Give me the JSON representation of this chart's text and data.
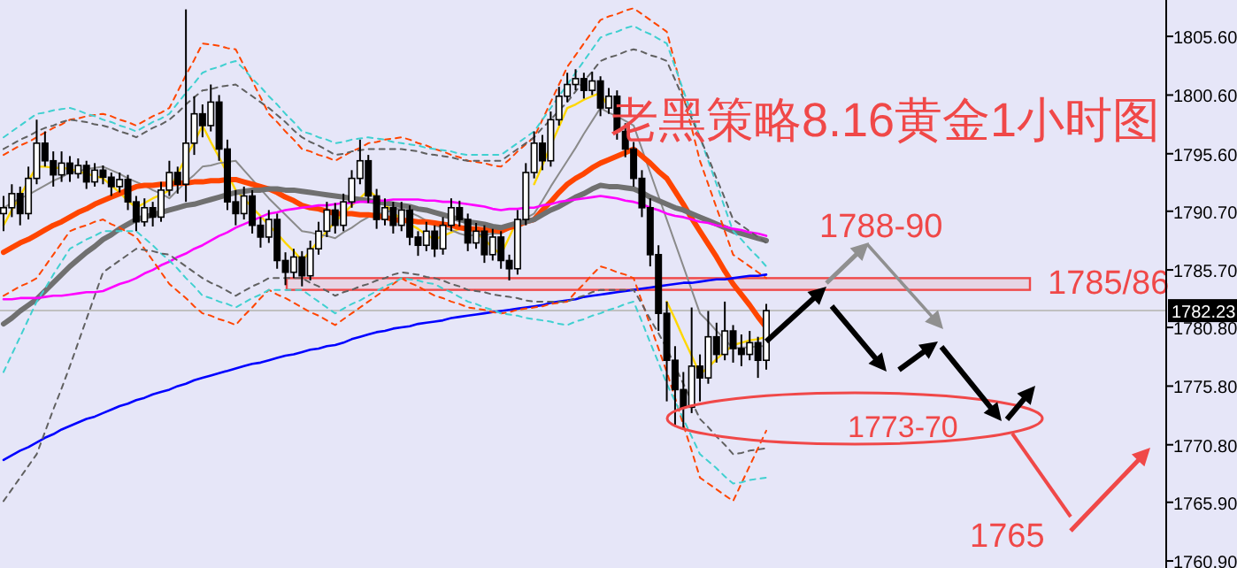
{
  "chart_data": {
    "type": "candlestick",
    "title": "老黑策略8.16黄金1小时图",
    "categories": [
      null,
      null,
      null,
      null,
      null,
      null,
      null,
      null,
      null,
      null,
      null,
      null,
      null,
      null,
      null,
      null,
      null,
      null,
      null,
      null,
      null,
      null,
      null,
      null,
      null,
      null,
      null,
      null,
      null,
      null,
      null,
      null,
      null,
      null,
      null,
      null,
      null,
      null,
      null,
      null,
      null,
      null,
      null,
      null,
      null,
      null,
      null,
      null,
      null,
      null,
      null,
      null,
      null,
      null,
      null,
      null,
      null,
      null,
      null,
      null,
      null,
      null,
      null,
      null,
      null,
      null,
      null,
      null,
      null,
      null,
      null,
      null,
      null,
      null,
      null,
      null,
      null,
      null,
      null,
      null,
      null,
      null,
      null,
      null,
      null,
      null,
      null,
      null,
      null,
      null,
      null,
      null,
      null
    ],
    "ohlc": [
      [
        1790.5,
        1792.0,
        1789.0,
        1791.0
      ],
      [
        1791.0,
        1793.0,
        1790.2,
        1792.2
      ],
      [
        1792.2,
        1792.8,
        1789.5,
        1790.5
      ],
      [
        1790.5,
        1794.5,
        1790.0,
        1793.5
      ],
      [
        1793.5,
        1798.5,
        1793.0,
        1796.5
      ],
      [
        1796.5,
        1797.5,
        1794.5,
        1795.0
      ],
      [
        1795.0,
        1795.8,
        1792.8,
        1793.8
      ],
      [
        1793.8,
        1795.8,
        1793.2,
        1794.8
      ],
      [
        1794.8,
        1795.4,
        1793.2,
        1793.9
      ],
      [
        1793.9,
        1795.2,
        1793.5,
        1794.6
      ],
      [
        1794.6,
        1795.0,
        1792.6,
        1793.2
      ],
      [
        1793.2,
        1794.8,
        1792.8,
        1794.2
      ],
      [
        1794.2,
        1794.6,
        1793.0,
        1793.6
      ],
      [
        1793.6,
        1794.0,
        1792.0,
        1792.8
      ],
      [
        1792.8,
        1794.0,
        1792.3,
        1793.4
      ],
      [
        1793.4,
        1793.8,
        1790.8,
        1791.5
      ],
      [
        1791.5,
        1792.0,
        1789.0,
        1789.8
      ],
      [
        1789.8,
        1791.8,
        1789.4,
        1791.0
      ],
      [
        1791.0,
        1791.5,
        1789.4,
        1790.2
      ],
      [
        1790.2,
        1793.2,
        1789.8,
        1792.5
      ],
      [
        1792.5,
        1795.0,
        1792.0,
        1794.0
      ],
      [
        1794.0,
        1794.5,
        1792.2,
        1793.0
      ],
      [
        1793.0,
        1807.9,
        1791.5,
        1796.5
      ],
      [
        1796.5,
        1800.5,
        1795.5,
        1799.0
      ],
      [
        1799.0,
        1799.8,
        1797.0,
        1798.0
      ],
      [
        1798.0,
        1801.5,
        1797.5,
        1800.0
      ],
      [
        1800.0,
        1800.6,
        1795.0,
        1796.0
      ],
      [
        1796.0,
        1796.8,
        1790.8,
        1791.5
      ],
      [
        1791.5,
        1792.5,
        1789.5,
        1790.5
      ],
      [
        1790.5,
        1792.8,
        1790.0,
        1792.0
      ],
      [
        1792.0,
        1792.5,
        1788.8,
        1789.5
      ],
      [
        1789.5,
        1790.2,
        1787.6,
        1788.5
      ],
      [
        1788.5,
        1790.8,
        1788.0,
        1790.0
      ],
      [
        1790.0,
        1790.5,
        1785.8,
        1786.5
      ],
      [
        1786.5,
        1787.2,
        1784.4,
        1785.5
      ],
      [
        1785.5,
        1787.5,
        1785.0,
        1786.8
      ],
      [
        1786.8,
        1787.3,
        1784.3,
        1785.2
      ],
      [
        1785.2,
        1788.2,
        1784.8,
        1787.5
      ],
      [
        1787.5,
        1789.8,
        1787.0,
        1789.0
      ],
      [
        1789.0,
        1791.5,
        1788.5,
        1790.8
      ],
      [
        1790.8,
        1791.4,
        1788.8,
        1789.5
      ],
      [
        1789.5,
        1792.2,
        1789.0,
        1791.5
      ],
      [
        1791.5,
        1794.2,
        1791.0,
        1793.5
      ],
      [
        1793.5,
        1796.8,
        1793.0,
        1795.0
      ],
      [
        1795.0,
        1795.5,
        1791.4,
        1792.0
      ],
      [
        1792.0,
        1792.6,
        1789.2,
        1790.0
      ],
      [
        1790.0,
        1791.8,
        1789.5,
        1791.0
      ],
      [
        1791.0,
        1791.5,
        1788.8,
        1789.5
      ],
      [
        1789.5,
        1791.5,
        1789.0,
        1790.8
      ],
      [
        1790.8,
        1791.2,
        1787.8,
        1788.5
      ],
      [
        1788.5,
        1789.0,
        1786.9,
        1787.8
      ],
      [
        1787.8,
        1789.8,
        1787.3,
        1789.0
      ],
      [
        1789.0,
        1789.5,
        1786.8,
        1787.5
      ],
      [
        1787.5,
        1790.2,
        1787.0,
        1789.5
      ],
      [
        1789.5,
        1791.8,
        1789.0,
        1791.0
      ],
      [
        1791.0,
        1791.6,
        1789.4,
        1790.0
      ],
      [
        1790.0,
        1790.5,
        1787.3,
        1788.0
      ],
      [
        1788.0,
        1789.7,
        1787.5,
        1789.0
      ],
      [
        1789.0,
        1789.5,
        1786.3,
        1787.0
      ],
      [
        1787.0,
        1789.2,
        1786.5,
        1788.5
      ],
      [
        1788.5,
        1789.0,
        1785.8,
        1786.5
      ],
      [
        1786.5,
        1787.0,
        1784.8,
        1785.8
      ],
      [
        1785.8,
        1790.8,
        1785.3,
        1790.0
      ],
      [
        1790.0,
        1794.8,
        1789.5,
        1794.0
      ],
      [
        1794.0,
        1797.5,
        1793.5,
        1796.5
      ],
      [
        1796.5,
        1797.2,
        1794.2,
        1795.0
      ],
      [
        1795.0,
        1799.2,
        1794.5,
        1798.5
      ],
      [
        1798.5,
        1801.3,
        1798.0,
        1800.5
      ],
      [
        1800.5,
        1802.5,
        1800.0,
        1801.5
      ],
      [
        1801.5,
        1802.8,
        1801.0,
        1802.0
      ],
      [
        1802.0,
        1802.5,
        1800.3,
        1801.0
      ],
      [
        1801.0,
        1802.6,
        1800.6,
        1801.8
      ],
      [
        1801.8,
        1802.2,
        1798.8,
        1799.5
      ],
      [
        1799.5,
        1801.2,
        1799.0,
        1800.5
      ],
      [
        1800.5,
        1801.0,
        1796.8,
        1797.5
      ],
      [
        1797.5,
        1798.2,
        1795.3,
        1796.0
      ],
      [
        1796.0,
        1796.6,
        1792.8,
        1793.5
      ],
      [
        1793.5,
        1794.2,
        1790.2,
        1791.0
      ],
      [
        1791.0,
        1791.8,
        1786.0,
        1787.0
      ],
      [
        1787.0,
        1787.8,
        1780.5,
        1782.0
      ],
      [
        1782.0,
        1783.0,
        1774.5,
        1778.0
      ],
      [
        1778.0,
        1779.2,
        1772.5,
        1775.5
      ],
      [
        1775.5,
        1777.0,
        1772.2,
        1774.0
      ],
      [
        1774.0,
        1782.5,
        1773.5,
        1777.5
      ],
      [
        1777.5,
        1778.5,
        1774.5,
        1776.5
      ],
      [
        1776.5,
        1782.2,
        1776.0,
        1780.0
      ],
      [
        1780.0,
        1781.2,
        1777.8,
        1778.5
      ],
      [
        1778.5,
        1783.0,
        1778.0,
        1780.5
      ],
      [
        1780.5,
        1781.0,
        1777.8,
        1779.0
      ],
      [
        1779.0,
        1780.2,
        1777.5,
        1778.5
      ],
      [
        1778.5,
        1780.5,
        1778.0,
        1779.5
      ],
      [
        1779.5,
        1780.0,
        1776.5,
        1778.0
      ],
      [
        1778.0,
        1782.8,
        1777.2,
        1782.23
      ]
    ],
    "series": [
      {
        "type": "line",
        "color": "#ffd700",
        "values": [
          1789.5,
          1790.8,
          1792.0,
          1793.3,
          1794.5,
          1794.5,
          1794.4,
          1794.4,
          1794.3,
          1794.1,
          1793.9,
          1793.7,
          1793.5,
          1792.9,
          1792.3,
          1791.6,
          1791.0,
          1791.4,
          1791.8,
          1792.1,
          1792.5,
          1793.9,
          1795.3,
          1796.6,
          1798.0,
          1796.6,
          1795.3,
          1793.9,
          1792.5,
          1791.8,
          1791.0,
          1790.3,
          1789.5,
          1788.8,
          1788.0,
          1787.3,
          1786.5,
          1787.3,
          1788.2,
          1789.0,
          1789.8,
          1790.5,
          1791.2,
          1791.8,
          1792.5,
          1791.9,
          1791.3,
          1790.6,
          1790.0,
          1789.6,
          1789.2,
          1788.7,
          1788.3,
          1788.6,
          1788.9,
          1789.2,
          1789.5,
          1788.9,
          1788.3,
          1787.6,
          1787.0,
          1788.5,
          1790.0,
          null,
          1793.0,
          1794.6,
          1796.3,
          1797.9,
          1799.5,
          1799.8,
          1800.2,
          1800.5,
          1800.8,
          1799.5,
          null,
          null,
          null,
          null,
          null,
          null,
          1783.0,
          1781.5,
          1779.9,
          1778.4,
          1776.8,
          1777.4,
          1778.1,
          1778.7,
          1779.3,
          1779.5,
          1779.7,
          1779.8,
          1780.0
        ]
      },
      {
        "type": "line",
        "color": "#8a8a8a",
        "values": [
          1791.0,
          1791.4,
          1791.8,
          1792.1,
          1792.5,
          1792.9,
          1793.3,
          1793.6,
          1794.0,
          1794.1,
          1794.3,
          1794.4,
          1794.5,
          1794.2,
          1793.9,
          1793.5,
          1793.2,
          1792.9,
          1792.5,
          1792.2,
          1791.8,
          1792.5,
          1793.2,
          1793.8,
          1794.5,
          1794.6,
          1794.8,
          1794.9,
          1795.0,
          1794.2,
          1793.4,
          1792.6,
          1791.8,
          1791.1,
          1790.4,
          1789.7,
          1789.0,
          1788.9,
          1788.7,
          1788.6,
          1788.4,
          1788.9,
          1789.3,
          1789.8,
          1790.2,
          1790.4,
          1790.6,
          1790.8,
          1791.0,
          1790.6,
          1790.3,
          1789.9,
          1789.5,
          1789.3,
          1789.1,
          1788.8,
          1788.6,
          1788.7,
          1788.7,
          1788.8,
          1788.8,
          1789.2,
          1789.7,
          1790.1,
          1790.5,
          1791.6,
          1792.8,
          1793.9,
          1795.0,
          1796.1,
          1797.3,
          1798.4,
          1799.5,
          1799.1,
          1798.8,
          1798.4,
          1798.0,
          1796.0,
          1794.0,
          1792.0,
          1790.0,
          1788.0,
          1786.0,
          1784.0,
          1782.0,
          1781.3,
          1780.5,
          1779.8,
          1779.0,
          1779.1,
          1779.1,
          1779.2,
          1779.2
        ]
      },
      {
        "type": "line",
        "color": "#ff4500",
        "values": [
          1787.2,
          1787.6,
          1788.0,
          1788.3,
          1788.7,
          1789.1,
          1789.5,
          1789.8,
          1790.2,
          1790.6,
          1790.9,
          1791.3,
          1791.6,
          1791.9,
          1792.2,
          1792.5,
          1792.8,
          1792.9,
          1792.9,
          1793.0,
          1793.0,
          1793.1,
          1793.1,
          1793.2,
          1793.2,
          1793.3,
          1793.3,
          1793.4,
          1793.4,
          1793.2,
          1793.0,
          1792.8,
          1792.6,
          1792.3,
          1791.9,
          1791.6,
          1791.2,
          1791.0,
          1790.9,
          1790.7,
          1790.5,
          1790.5,
          1790.5,
          1790.4,
          1790.4,
          1790.3,
          1790.2,
          1790.0,
          1789.9,
          1789.9,
          1789.8,
          1789.8,
          1789.7,
          1789.6,
          1789.5,
          1789.3,
          1789.2,
          1789.2,
          1789.1,
          1789.1,
          1789.0,
          1789.3,
          1789.5,
          1789.8,
          1790.0,
          1790.8,
          1791.5,
          1792.3,
          1793.0,
          1793.5,
          1793.9,
          1794.4,
          1794.8,
          1795.1,
          1795.4,
          1795.7,
          1796.0,
          1795.4,
          1794.8,
          1794.1,
          1793.5,
          1792.4,
          1791.3,
          1790.1,
          1789.0,
          1787.9,
          1786.8,
          1785.6,
          1784.5,
          1783.6,
          1782.7,
          1781.7,
          1780.8
        ]
      },
      {
        "type": "line",
        "color": "#707070",
        "values": [
          1781.1,
          1781.6,
          1782.2,
          1782.7,
          1783.2,
          1783.9,
          1784.6,
          1785.3,
          1786.0,
          1786.6,
          1787.2,
          1787.7,
          1788.3,
          1788.7,
          1789.2,
          1789.6,
          1790.0,
          1790.2,
          1790.4,
          1790.6,
          1790.8,
          1791.0,
          1791.2,
          1791.3,
          1791.5,
          1791.7,
          1791.9,
          1792.1,
          1792.3,
          1792.4,
          1792.5,
          1792.5,
          1792.6,
          1792.6,
          1792.5,
          1792.5,
          1792.4,
          1792.3,
          1792.2,
          1792.1,
          1792.0,
          1791.9,
          1791.8,
          1791.7,
          1791.6,
          1791.5,
          1791.4,
          1791.3,
          1791.2,
          1791.1,
          1790.9,
          1790.8,
          1790.6,
          1790.4,
          1790.2,
          1790.0,
          1789.8,
          1789.7,
          1789.6,
          1789.4,
          1789.3,
          1789.5,
          1789.7,
          1789.8,
          1790.0,
          1790.4,
          1790.8,
          1791.1,
          1791.5,
          1791.9,
          1792.2,
          1792.6,
          1792.9,
          1792.8,
          1792.8,
          1792.7,
          1792.6,
          1792.3,
          1791.9,
          1791.6,
          1791.3,
          1791.0,
          1790.8,
          1790.5,
          1790.2,
          1789.9,
          1789.6,
          1789.3,
          1789.0,
          1788.8,
          1788.6,
          1788.4,
          1788.2
        ]
      },
      {
        "type": "line",
        "color": "#ff00ff",
        "values": [
          1783.2,
          1783.2,
          1783.3,
          1783.3,
          1783.3,
          1783.4,
          1783.5,
          1783.5,
          1783.6,
          1783.7,
          1783.8,
          1783.8,
          1783.9,
          1784.2,
          1784.5,
          1784.7,
          1785.0,
          1785.4,
          1785.7,
          1786.1,
          1786.4,
          1786.8,
          1787.1,
          1787.5,
          1787.8,
          1788.2,
          1788.6,
          1788.9,
          1789.3,
          1789.6,
          1789.9,
          1790.2,
          1790.5,
          1790.6,
          1790.8,
          1790.9,
          1791.0,
          1791.1,
          1791.2,
          1791.2,
          1791.3,
          1791.4,
          1791.4,
          1791.5,
          1791.5,
          1791.6,
          1791.6,
          1791.7,
          1791.7,
          1791.7,
          1791.7,
          1791.6,
          1791.6,
          1791.5,
          1791.5,
          1791.4,
          1791.3,
          1791.2,
          1791.1,
          1790.9,
          1790.8,
          1790.9,
          1790.9,
          1791.0,
          1791.0,
          1791.2,
          1791.3,
          1791.5,
          1791.6,
          1791.7,
          1791.8,
          1791.9,
          1792.0,
          1791.9,
          1791.8,
          1791.6,
          1791.5,
          1791.3,
          1791.0,
          1790.8,
          1790.5,
          1790.3,
          1790.2,
          1790.0,
          1789.8,
          1789.7,
          1789.5,
          1789.4,
          1789.2,
          1789.1,
          1788.9,
          1788.8,
          1788.6
        ]
      },
      {
        "type": "line",
        "color": "#0000ff",
        "values": [
          1769.5,
          1769.9,
          1770.3,
          1770.6,
          1771.0,
          1771.4,
          1771.7,
          1772.1,
          1772.4,
          1772.7,
          1773.0,
          1773.2,
          1773.5,
          1773.8,
          1774.1,
          1774.3,
          1774.6,
          1774.8,
          1775.1,
          1775.3,
          1775.5,
          1775.8,
          1776.0,
          1776.3,
          1776.5,
          1776.7,
          1776.9,
          1777.1,
          1777.3,
          1777.5,
          1777.7,
          1777.8,
          1778.0,
          1778.2,
          1778.4,
          1778.5,
          1778.7,
          1778.9,
          1779.0,
          1779.2,
          1779.3,
          1779.5,
          1779.8,
          1780.0,
          1780.2,
          1780.4,
          1780.5,
          1780.7,
          1780.8,
          1780.9,
          1781.1,
          1781.2,
          1781.3,
          1781.4,
          1781.6,
          1781.7,
          1781.8,
          1781.9,
          1782.0,
          1782.1,
          1782.2,
          1782.3,
          1782.4,
          1782.5,
          1782.6,
          1782.7,
          1782.9,
          1783.0,
          1783.1,
          1783.2,
          1783.4,
          1783.5,
          1783.6,
          1783.7,
          1783.8,
          1783.9,
          1784.0,
          1784.1,
          1784.2,
          1784.3,
          1784.4,
          1784.5,
          1784.6,
          1784.6,
          1784.7,
          1784.8,
          1784.9,
          1784.9,
          1785.0,
          1785.1,
          1785.2,
          1785.2,
          1785.3
        ]
      },
      {
        "type": "line",
        "line_style": "dashed",
        "color": "#ff4500",
        "values": [
          1795.5,
          1795.9,
          1796.3,
          1796.6,
          1797.0,
          1797.4,
          1797.8,
          1798.1,
          1798.5,
          1798.6,
          1798.8,
          1798.9,
          1799.0,
          1798.8,
          1798.5,
          1798.3,
          1798.0,
          1798.4,
          1798.8,
          1799.1,
          1799.5,
          1800.9,
          1802.3,
          1803.6,
          1805.0,
          1804.9,
          1804.8,
          1804.6,
          1804.5,
          1803.1,
          1801.8,
          1800.4,
          1799.0,
          1798.3,
          1797.5,
          1796.8,
          1796.0,
          1795.8,
          1795.5,
          1795.3,
          1795.0,
          1795.4,
          1795.8,
          1796.1,
          1796.5,
          1796.6,
          1796.8,
          1796.9,
          1797.0,
          1796.8,
          1796.5,
          1796.3,
          1796.0,
          1795.8,
          1795.5,
          1795.3,
          1795.0,
          1794.9,
          1794.8,
          1794.6,
          1794.5,
          1795.1,
          1795.8,
          1796.4,
          1797.0,
          1798.5,
          1800.0,
          1801.5,
          1803.0,
          1804.0,
          1805.0,
          1806.0,
          1807.0,
          1807.3,
          1807.5,
          1807.8,
          1808.0,
          1807.5,
          1807.0,
          1806.5,
          1806.0,
          1803.3,
          1800.5,
          1797.8,
          1795.0,
          1793.0,
          1791.0,
          1789.0,
          1787.0,
          1786.5,
          1786.0,
          1785.5,
          1785.0
        ]
      },
      {
        "type": "line",
        "line_style": "dashed",
        "color": "#ff4500",
        "values": [
          1783.5,
          1783.9,
          1784.3,
          1784.6,
          1785.0,
          1786.0,
          1787.0,
          1788.0,
          1789.0,
          1789.3,
          1789.5,
          1789.8,
          1790.0,
          1789.6,
          1789.3,
          1788.9,
          1788.5,
          1787.5,
          1786.5,
          1785.5,
          1784.5,
          1783.9,
          1783.3,
          1782.6,
          1782.0,
          1781.8,
          1781.5,
          1781.3,
          1781.0,
          1781.8,
          1782.5,
          1783.3,
          1784.0,
          1783.6,
          1783.3,
          1782.9,
          1782.5,
          1782.1,
          1781.8,
          1781.4,
          1781.0,
          1781.5,
          1782.0,
          1782.5,
          1783.0,
          1783.5,
          1784.0,
          1784.5,
          1785.0,
          1784.6,
          1784.3,
          1783.9,
          1783.5,
          1783.3,
          1783.0,
          1782.8,
          1782.5,
          1782.4,
          1782.3,
          1782.1,
          1782.0,
          1782.1,
          1782.3,
          1782.4,
          1782.5,
          1782.6,
          1782.8,
          1782.9,
          1783.0,
          1783.8,
          1784.5,
          1785.3,
          1786.0,
          1785.8,
          1785.5,
          1785.3,
          1785.0,
          1783.0,
          1781.0,
          1779.0,
          1777.0,
          1774.8,
          1772.5,
          1770.3,
          1768.0,
          1767.5,
          1767.0,
          1766.5,
          1766.0,
          1767.5,
          1769.0,
          1770.5,
          1772.0
        ]
      },
      {
        "type": "line",
        "line_style": "dashed",
        "color": "#40d0d0",
        "values": [
          1797.0,
          1797.5,
          1798.0,
          1798.5,
          1799.0,
          1799.1,
          1799.3,
          1799.4,
          1799.5,
          1799.3,
          1799.0,
          1798.8,
          1798.5,
          1798.3,
          1798.0,
          1797.8,
          1797.5,
          1797.9,
          1798.3,
          1798.6,
          1799.0,
          1799.9,
          1800.8,
          1801.6,
          1802.5,
          1802.8,
          1803.0,
          1803.3,
          1803.5,
          1802.8,
          1802.0,
          1801.3,
          1800.5,
          1799.8,
          1799.0,
          1798.3,
          1797.5,
          1797.3,
          1797.0,
          1796.8,
          1796.5,
          1796.6,
          1796.8,
          1796.9,
          1797.0,
          1796.9,
          1796.8,
          1796.6,
          1796.5,
          1796.4,
          1796.3,
          1796.1,
          1796.0,
          1795.9,
          1795.8,
          1795.6,
          1795.5,
          1795.5,
          1795.5,
          1795.5,
          1795.5,
          1796.0,
          1796.5,
          1797.0,
          1797.5,
          1798.5,
          1799.5,
          1800.5,
          1801.5,
          1802.5,
          1803.5,
          1804.5,
          1805.5,
          1805.8,
          1806.0,
          1806.3,
          1806.5,
          1806.1,
          1805.8,
          1805.4,
          1805.0,
          1803.0,
          1801.0,
          1799.0,
          1797.0,
          1795.0,
          1793.0,
          1791.0,
          1789.0,
          1788.3,
          1787.5,
          1786.8,
          1786.0
        ]
      },
      {
        "type": "line",
        "line_style": "dashed",
        "color": "#40d0d0",
        "values": [
          1777.0,
          1778.5,
          1780.0,
          1781.5,
          1783.0,
          1784.1,
          1785.3,
          1786.4,
          1787.5,
          1787.9,
          1788.3,
          1788.6,
          1789.0,
          1789.0,
          1789.0,
          1789.0,
          1789.0,
          1788.4,
          1787.8,
          1787.1,
          1786.5,
          1785.8,
          1785.0,
          1784.3,
          1783.5,
          1783.3,
          1783.0,
          1782.8,
          1782.5,
          1782.9,
          1783.3,
          1783.6,
          1784.0,
          1784.0,
          1784.0,
          1784.0,
          1784.0,
          1783.5,
          1783.0,
          1782.5,
          1782.0,
          1782.4,
          1782.8,
          1783.1,
          1783.5,
          1783.9,
          1784.3,
          1784.6,
          1785.0,
          1784.9,
          1784.8,
          1784.6,
          1784.5,
          1784.1,
          1783.8,
          1783.4,
          1783.0,
          1782.8,
          1782.5,
          1782.3,
          1782.0,
          1781.9,
          1781.8,
          1781.6,
          1781.5,
          1781.4,
          1781.3,
          1781.1,
          1781.0,
          1781.3,
          1781.5,
          1781.8,
          1782.0,
          1782.3,
          1782.5,
          1782.8,
          1783.0,
          1781.3,
          1779.5,
          1777.8,
          1776.0,
          1774.5,
          1773.0,
          1771.5,
          1770.0,
          1769.4,
          1768.8,
          1768.1,
          1767.5,
          1767.6,
          1767.8,
          1767.9,
          1768.0
        ]
      },
      {
        "type": "line",
        "line_style": "dashed",
        "color": "#606060",
        "values": [
          1796.0,
          1796.4,
          1796.8,
          1797.1,
          1797.5,
          1797.8,
          1798.0,
          1798.3,
          1798.5,
          1798.4,
          1798.3,
          1798.1,
          1798.0,
          1797.8,
          1797.5,
          1797.3,
          1797.0,
          1797.4,
          1797.8,
          1798.1,
          1798.5,
          1799.1,
          1799.8,
          1800.4,
          1801.0,
          1801.1,
          1801.3,
          1801.4,
          1801.5,
          1801.0,
          1800.5,
          1800.0,
          1799.5,
          1798.9,
          1798.3,
          1797.6,
          1797.0,
          1796.6,
          1796.3,
          1795.9,
          1795.5,
          1795.6,
          1795.8,
          1795.9,
          1796.0,
          1796.0,
          1796.0,
          1796.0,
          1796.0,
          1795.9,
          1795.8,
          1795.6,
          1795.5,
          1795.4,
          1795.3,
          1795.1,
          1795.0,
          1795.0,
          1795.0,
          1795.0,
          1795.0,
          1795.5,
          1796.0,
          1796.5,
          1797.0,
          1797.8,
          1798.5,
          1799.3,
          1800.0,
          1800.9,
          1801.8,
          1802.6,
          1803.5,
          1803.8,
          1804.0,
          1804.3,
          1804.5,
          1804.3,
          1804.0,
          1803.8,
          1803.5,
          1801.9,
          1800.3,
          1798.6,
          1797.0,
          1795.3,
          1793.5,
          1791.8,
          1790.0,
          1789.5,
          1789.0,
          1788.5,
          1788.0
        ]
      },
      {
        "type": "line",
        "line_style": "dashed",
        "color": "#606060",
        "values": [
          1766.0,
          1767.0,
          1768.0,
          1769.0,
          1770.0,
          1771.9,
          1773.8,
          1775.6,
          1777.5,
          1779.5,
          1781.5,
          1783.5,
          1785.5,
          1786.0,
          1786.5,
          1787.0,
          1787.5,
          1787.4,
          1787.3,
          1787.1,
          1787.0,
          1786.5,
          1786.0,
          1785.5,
          1785.0,
          1784.6,
          1784.3,
          1783.9,
          1783.5,
          1783.9,
          1784.3,
          1784.6,
          1785.0,
          1785.0,
          1785.0,
          1785.0,
          1785.0,
          1784.6,
          1784.3,
          1783.9,
          1783.5,
          1783.8,
          1784.0,
          1784.3,
          1784.5,
          1784.8,
          1785.0,
          1785.3,
          1785.5,
          1785.4,
          1785.3,
          1785.1,
          1785.0,
          1784.8,
          1784.5,
          1784.3,
          1784.0,
          1783.9,
          1783.8,
          1783.6,
          1783.5,
          1783.4,
          1783.3,
          1783.1,
          1783.0,
          1783.0,
          1783.0,
          1783.0,
          1783.0,
          1783.3,
          1783.5,
          1783.8,
          1784.0,
          1784.0,
          1784.0,
          1784.0,
          1784.0,
          1782.8,
          1781.5,
          1780.3,
          1779.0,
          1777.5,
          1776.0,
          1774.5,
          1773.0,
          1772.3,
          1771.5,
          1770.8,
          1770.0,
          1770.1,
          1770.3,
          1770.4,
          1770.5
        ]
      }
    ],
    "ylim": [
      1760.3,
      1808.7
    ],
    "yticks": [
      {
        "value": 1805.6,
        "label": "1805.60"
      },
      {
        "value": 1800.6,
        "label": "1800.60"
      },
      {
        "value": 1795.6,
        "label": "1795.60"
      },
      {
        "value": 1790.7,
        "label": "1790.70"
      },
      {
        "value": 1785.7,
        "label": "1785.70"
      },
      {
        "value": 1780.8,
        "label": "1780.80"
      },
      {
        "value": 1775.8,
        "label": "1775.80"
      },
      {
        "value": 1770.8,
        "label": "1770.80"
      },
      {
        "value": 1765.9,
        "label": "1765.90"
      },
      {
        "value": 1760.9,
        "label": "1760.90"
      }
    ],
    "tick_labels": "y",
    "ref_lines": [
      {
        "axis": "y",
        "value": 1782.23,
        "label": "1782.23",
        "color": "#c0c0c0"
      }
    ],
    "bands": [
      {
        "axis": "y",
        "from": 1784.0,
        "to": 1785.0,
        "label": "1785/86",
        "color": "#f04848"
      }
    ],
    "annotations": [
      "1788-90",
      "1773-70",
      "1765"
    ]
  }
}
